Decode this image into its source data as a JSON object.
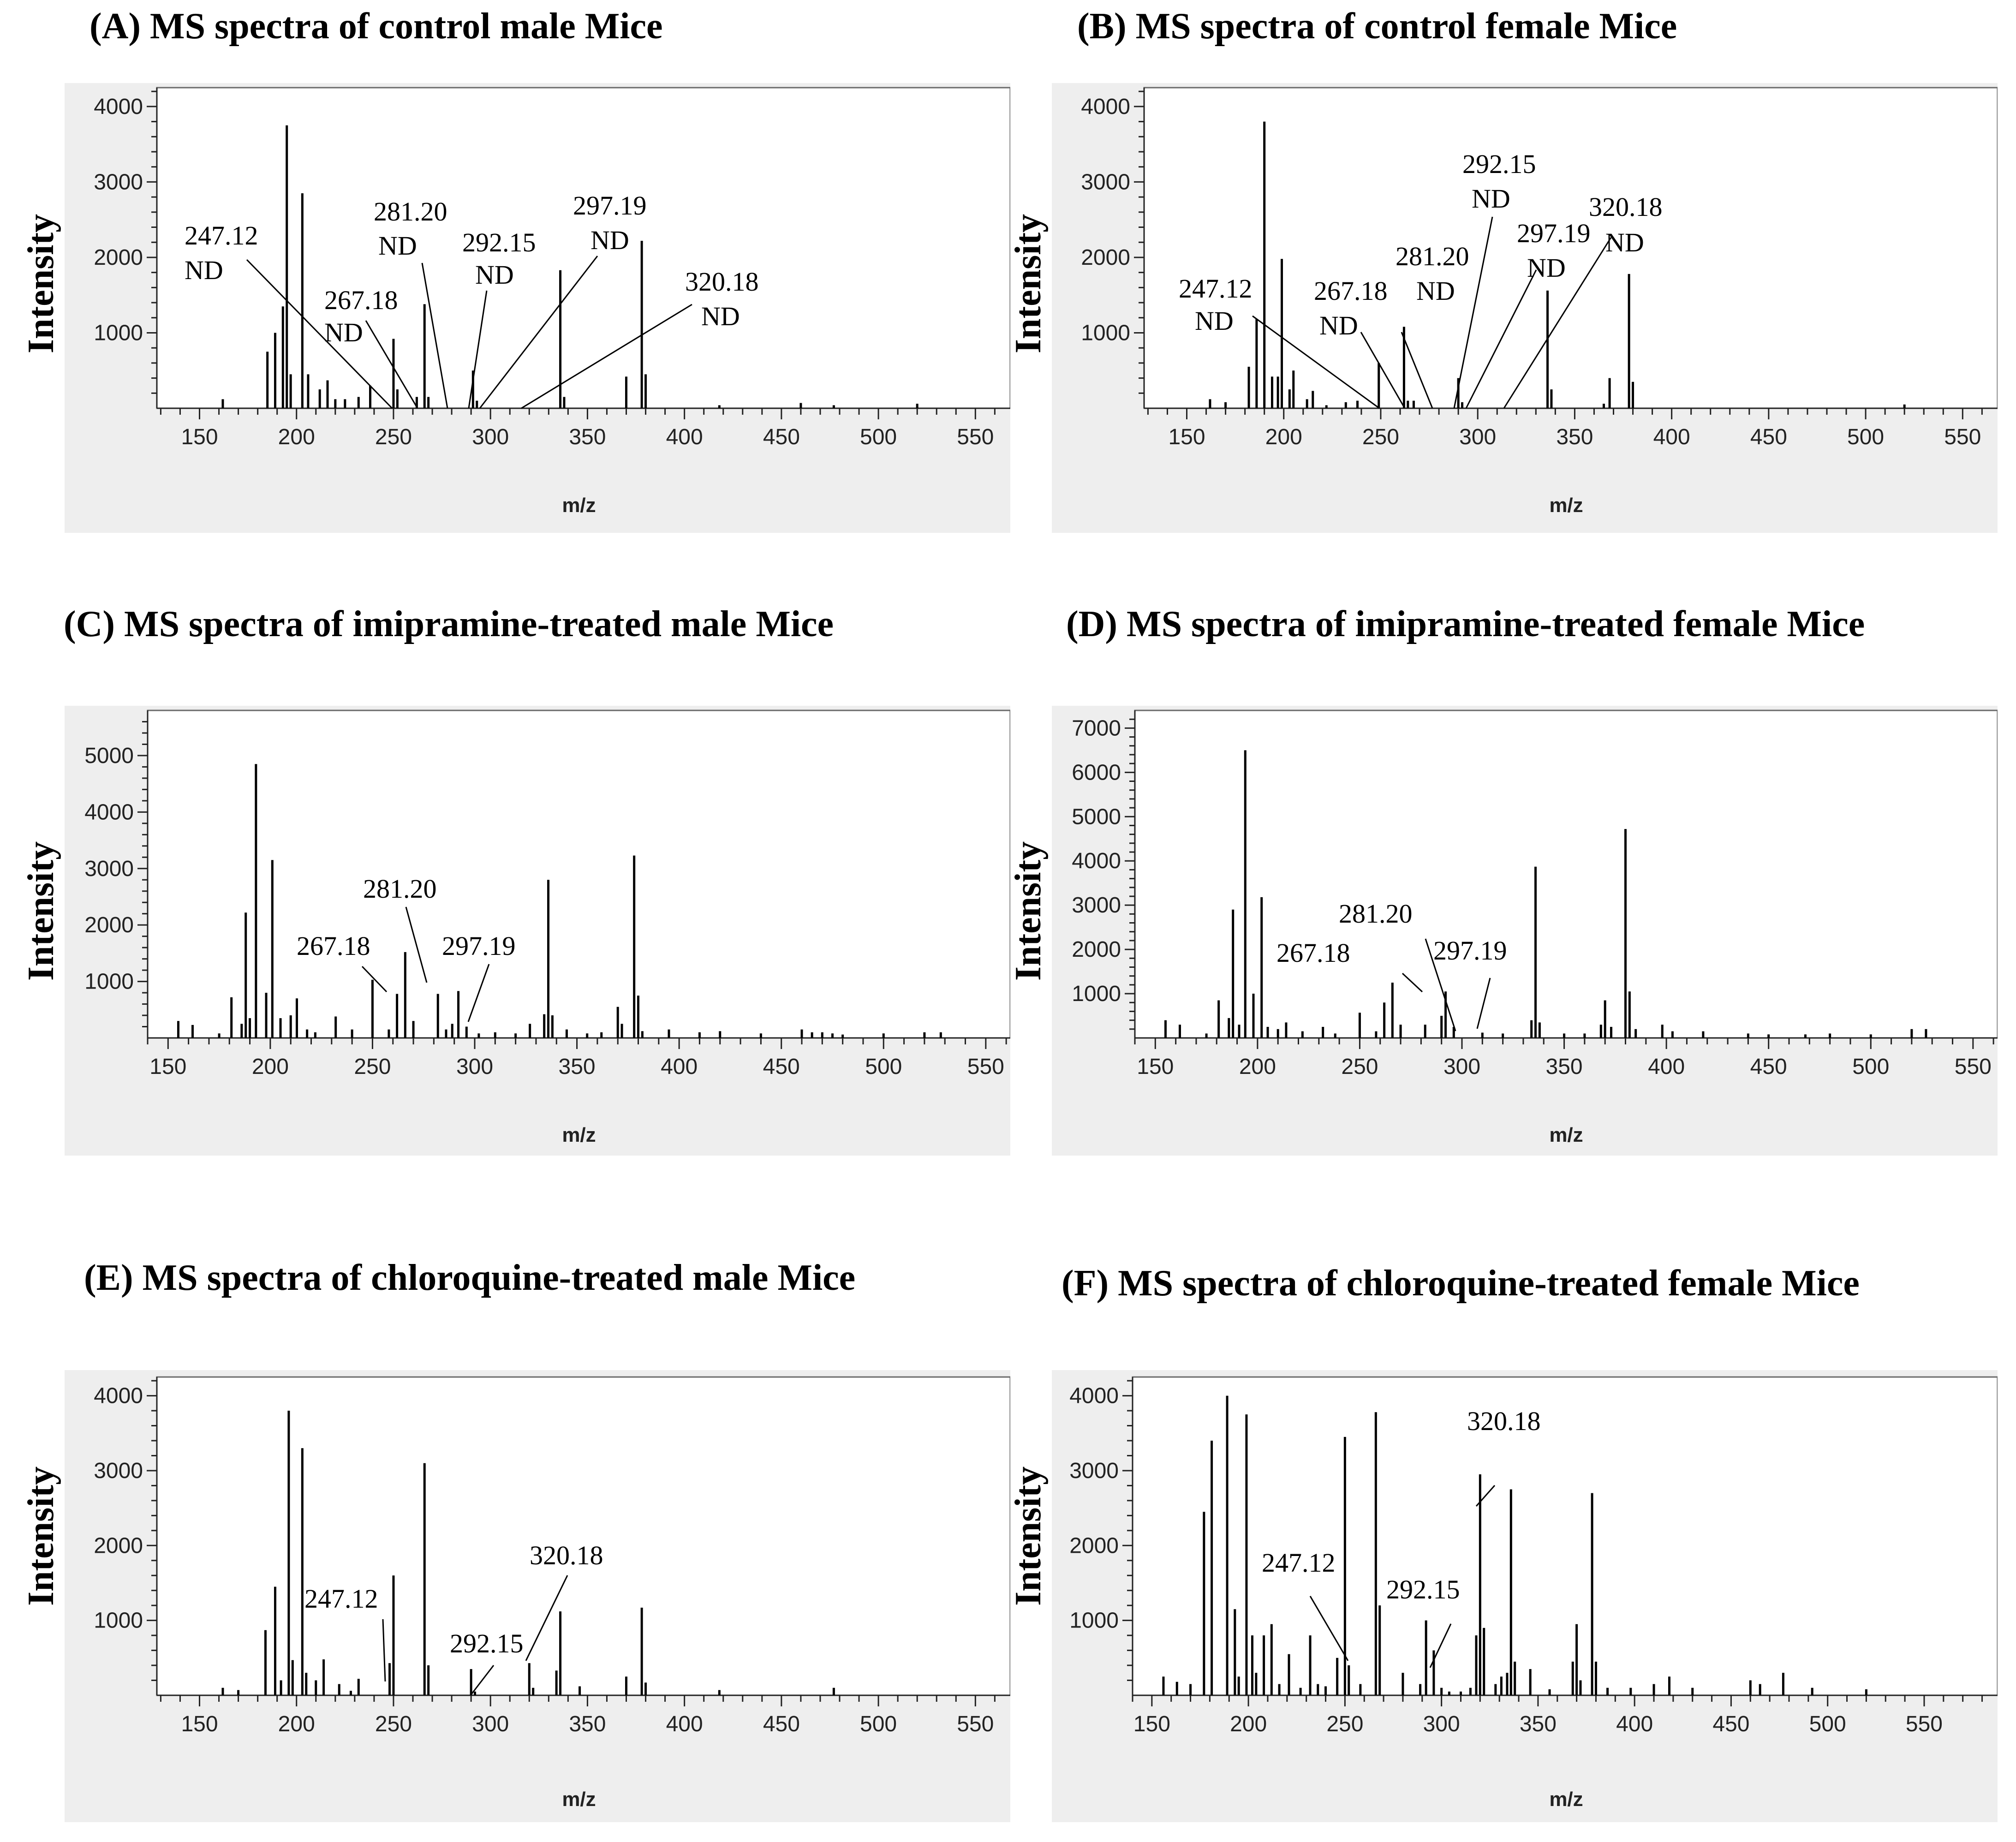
{
  "chart_data": [
    {
      "id": "A",
      "type": "bar",
      "title": "(A) MS spectra of control male Mice",
      "xlabel": "m/z",
      "ylabel": "Intensity",
      "xlim": [
        128,
        568
      ],
      "ylim": [
        0,
        4250
      ],
      "xticks": [
        150,
        200,
        250,
        300,
        350,
        400,
        450,
        500,
        550
      ],
      "yticks": [
        1000,
        2000,
        3000,
        4000
      ],
      "peaks": {
        "x": [
          162,
          185,
          189,
          193,
          195,
          197,
          203,
          206,
          212,
          216,
          220,
          225,
          232,
          238,
          250,
          252,
          262,
          266,
          268,
          291,
          293,
          336,
          338,
          370,
          378,
          380,
          418,
          460,
          477,
          520
        ],
        "y": [
          120,
          750,
          1000,
          1350,
          3750,
          450,
          2850,
          450,
          250,
          370,
          120,
          120,
          150,
          300,
          920,
          250,
          150,
          1380,
          150,
          500,
          100,
          1830,
          150,
          420,
          2220,
          450,
          40,
          70,
          40,
          60
        ]
      },
      "annotations": [
        {
          "line1": "247.12",
          "line2": "ND"
        },
        {
          "line1": "267.18",
          "line2": "ND"
        },
        {
          "line1": "281.20",
          "line2": "ND"
        },
        {
          "line1": "292.15",
          "line2": "ND"
        },
        {
          "line1": "297.19",
          "line2": "ND"
        },
        {
          "line1": "320.18",
          "line2": "ND"
        }
      ]
    },
    {
      "id": "B",
      "type": "bar",
      "title": "(B) MS spectra of control female Mice",
      "xlabel": "m/z",
      "ylabel": "Intensity",
      "xlim": [
        128,
        568
      ],
      "ylim": [
        0,
        4250
      ],
      "xticks": [
        150,
        200,
        250,
        300,
        350,
        400,
        450,
        500,
        550
      ],
      "yticks": [
        1000,
        2000,
        3000,
        4000
      ],
      "peaks": {
        "x": [
          162,
          170,
          182,
          186,
          190,
          194,
          197,
          199,
          203,
          205,
          212,
          215,
          222,
          232,
          238,
          249,
          262,
          264,
          267,
          290,
          292,
          336,
          338,
          365,
          368,
          378,
          380,
          520
        ],
        "y": [
          120,
          80,
          550,
          1180,
          3800,
          420,
          420,
          1980,
          250,
          500,
          120,
          230,
          40,
          80,
          100,
          600,
          1080,
          100,
          100,
          400,
          80,
          1560,
          250,
          60,
          400,
          1780,
          350,
          50
        ]
      },
      "annotations": [
        {
          "line1": "247.12",
          "line2": "ND"
        },
        {
          "line1": "267.18",
          "line2": "ND"
        },
        {
          "line1": "281.20",
          "line2": "ND"
        },
        {
          "line1": "292.15",
          "line2": "ND"
        },
        {
          "line1": "297.19",
          "line2": "ND"
        },
        {
          "line1": "320.18",
          "line2": "ND"
        }
      ]
    },
    {
      "id": "C",
      "type": "bar",
      "title": "(C) MS spectra of imipramine-treated male Mice",
      "xlabel": "m/z",
      "ylabel": "Intensity",
      "xlim": [
        140,
        562
      ],
      "ylim": [
        0,
        5800
      ],
      "xticks": [
        150,
        200,
        250,
        300,
        350,
        400,
        450,
        500,
        550
      ],
      "yticks": [
        1000,
        2000,
        3000,
        4000,
        5000
      ],
      "peaks": {
        "x": [
          155,
          162,
          175,
          181,
          186,
          188,
          190,
          193,
          198,
          201,
          205,
          210,
          213,
          218,
          222,
          232,
          240,
          250,
          258,
          262,
          266,
          270,
          282,
          286,
          289,
          292,
          296,
          302,
          310,
          320,
          327,
          334,
          336,
          338,
          345,
          355,
          362,
          370,
          372,
          378,
          380,
          382,
          395,
          410,
          420,
          440,
          460,
          465,
          470,
          475,
          480,
          500,
          520,
          528
        ],
        "y": [
          300,
          230,
          80,
          720,
          250,
          2220,
          350,
          4850,
          800,
          3150,
          350,
          400,
          700,
          150,
          100,
          380,
          150,
          1030,
          150,
          780,
          1520,
          300,
          780,
          150,
          250,
          830,
          200,
          80,
          100,
          80,
          250,
          420,
          2800,
          400,
          150,
          80,
          100,
          550,
          250,
          3230,
          750,
          120,
          150,
          100,
          120,
          80,
          150,
          100,
          100,
          80,
          60,
          80,
          100,
          100
        ]
      },
      "annotations": [
        {
          "line1": "267.18"
        },
        {
          "line1": "281.20"
        },
        {
          "line1": "297.19"
        }
      ]
    },
    {
      "id": "D",
      "type": "bar",
      "title": "(D) MS spectra of imipramine-treated female Mice",
      "xlabel": "m/z",
      "ylabel": "Intensity",
      "xlim": [
        140,
        562
      ],
      "ylim": [
        0,
        7400
      ],
      "xticks": [
        150,
        200,
        250,
        300,
        350,
        400,
        450,
        500,
        550
      ],
      "yticks": [
        1000,
        2000,
        3000,
        4000,
        5000,
        6000,
        7000
      ],
      "peaks": {
        "x": [
          155,
          162,
          175,
          181,
          186,
          188,
          191,
          194,
          198,
          202,
          205,
          210,
          214,
          222,
          232,
          238,
          250,
          258,
          262,
          266,
          270,
          282,
          290,
          292,
          296,
          310,
          320,
          334,
          336,
          338,
          350,
          360,
          368,
          370,
          373,
          380,
          382,
          385,
          398,
          403,
          418,
          440,
          450,
          468,
          480,
          500,
          520,
          527
        ],
        "y": [
          400,
          300,
          100,
          850,
          450,
          2900,
          300,
          6500,
          1000,
          3180,
          250,
          200,
          350,
          150,
          250,
          100,
          570,
          150,
          800,
          1250,
          300,
          300,
          500,
          1050,
          250,
          120,
          100,
          400,
          3870,
          350,
          100,
          100,
          300,
          850,
          250,
          4720,
          1050,
          200,
          300,
          150,
          150,
          100,
          80,
          80,
          100,
          80,
          200,
          200
        ]
      },
      "annotations": [
        {
          "line1": "267.18"
        },
        {
          "line1": "281.20"
        },
        {
          "line1": "297.19"
        }
      ]
    },
    {
      "id": "E",
      "type": "bar",
      "title": "(E) MS spectra of chloroquine-treated male Mice",
      "xlabel": "m/z",
      "ylabel": "Intensity",
      "xlim": [
        128,
        568
      ],
      "ylim": [
        0,
        4250
      ],
      "xticks": [
        150,
        200,
        250,
        300,
        350,
        400,
        450,
        500,
        550
      ],
      "yticks": [
        1000,
        2000,
        3000,
        4000
      ],
      "peaks": {
        "x": [
          162,
          170,
          184,
          189,
          192,
          196,
          198,
          203,
          205,
          210,
          214,
          222,
          228,
          232,
          248,
          250,
          266,
          268,
          290,
          292,
          320,
          322,
          334,
          336,
          346,
          370,
          378,
          380,
          418,
          477
        ],
        "y": [
          100,
          70,
          870,
          1450,
          200,
          3800,
          470,
          3300,
          300,
          200,
          480,
          150,
          60,
          220,
          430,
          1600,
          3100,
          400,
          350,
          50,
          430,
          100,
          330,
          1120,
          120,
          250,
          1170,
          170,
          70,
          100
        ]
      },
      "annotations": [
        {
          "line1": "247.12"
        },
        {
          "line1": "292.15"
        },
        {
          "line1": "320.18"
        }
      ]
    },
    {
      "id": "F",
      "type": "bar",
      "title": "(F) MS spectra of chloroquine-treated female Mice",
      "xlabel": "m/z",
      "ylabel": "Intensity",
      "xlim": [
        140,
        588
      ],
      "ylim": [
        0,
        4250
      ],
      "xticks": [
        150,
        200,
        250,
        300,
        350,
        400,
        450,
        500,
        550
      ],
      "yticks": [
        1000,
        2000,
        3000,
        4000
      ],
      "peaks": {
        "x": [
          156,
          163,
          170,
          177,
          181,
          189,
          193,
          195,
          199,
          202,
          204,
          208,
          212,
          216,
          221,
          227,
          232,
          236,
          240,
          246,
          250,
          252,
          258,
          266,
          268,
          280,
          289,
          292,
          296,
          300,
          304,
          310,
          315,
          318,
          320,
          322,
          328,
          331,
          334,
          336,
          338,
          346,
          356,
          368,
          370,
          372,
          378,
          380,
          386,
          398,
          410,
          418,
          430,
          460,
          465,
          477,
          492,
          520
        ],
        "y": [
          250,
          180,
          150,
          2450,
          3400,
          4000,
          1150,
          250,
          3750,
          800,
          300,
          800,
          950,
          150,
          550,
          100,
          800,
          150,
          120,
          500,
          3450,
          400,
          150,
          3780,
          1200,
          300,
          150,
          1000,
          600,
          100,
          50,
          50,
          100,
          800,
          2950,
          900,
          150,
          250,
          300,
          2750,
          450,
          350,
          80,
          450,
          950,
          200,
          2700,
          450,
          100,
          100,
          150,
          250,
          100,
          200,
          150,
          300,
          100,
          80
        ]
      },
      "annotations": [
        {
          "line1": "247.12"
        },
        {
          "line1": "292.15"
        },
        {
          "line1": "320.18"
        }
      ]
    }
  ]
}
